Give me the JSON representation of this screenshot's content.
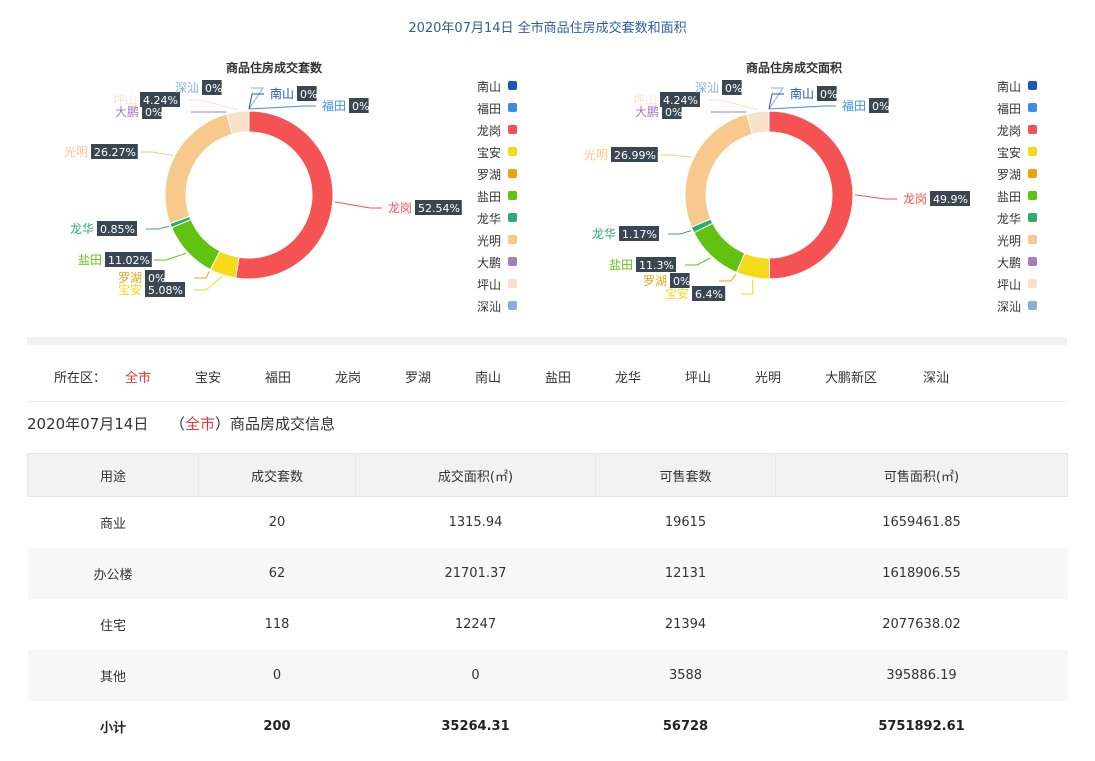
{
  "header": {
    "title": "2020年07月14日 全市商品住房成交套数和面积"
  },
  "legend": [
    {
      "name": "南山",
      "color": "#1e55b8"
    },
    {
      "name": "福田",
      "color": "#3d8de8"
    },
    {
      "name": "龙岗",
      "color": "#f55353"
    },
    {
      "name": "宝安",
      "color": "#f5da1a"
    },
    {
      "name": "罗湖",
      "color": "#eba20c"
    },
    {
      "name": "盐田",
      "color": "#62c211"
    },
    {
      "name": "龙华",
      "color": "#2fad6e"
    },
    {
      "name": "光明",
      "color": "#f8c98c"
    },
    {
      "name": "大鹏",
      "color": "#a57cc0"
    },
    {
      "name": "坪山",
      "color": "#f9e2c9"
    },
    {
      "name": "深汕",
      "color": "#89ace3"
    }
  ],
  "chart_data": [
    {
      "type": "pie",
      "title": "商品住房成交套数",
      "slices": [
        {
          "name": "龙岗",
          "value": 52.54,
          "label": "52.54%"
        },
        {
          "name": "宝安",
          "value": 5.08,
          "label": "5.08%"
        },
        {
          "name": "罗湖",
          "value": 0,
          "label": "0%"
        },
        {
          "name": "盐田",
          "value": 11.02,
          "label": "11.02%"
        },
        {
          "name": "龙华",
          "value": 0.85,
          "label": "0.85%"
        },
        {
          "name": "光明",
          "value": 26.27,
          "label": "26.27%"
        },
        {
          "name": "大鹏",
          "value": 0,
          "label": "0%"
        },
        {
          "name": "坪山",
          "value": 4.24,
          "label": "4.24%"
        },
        {
          "name": "深汕",
          "value": 0,
          "label": "0%"
        },
        {
          "name": "南山",
          "value": 0,
          "label": "0%"
        },
        {
          "name": "福田",
          "value": 0,
          "label": "0%"
        }
      ]
    },
    {
      "type": "pie",
      "title": "商品住房成交面积",
      "slices": [
        {
          "name": "龙岗",
          "value": 49.9,
          "label": "49.9%"
        },
        {
          "name": "宝安",
          "value": 6.4,
          "label": "6.4%"
        },
        {
          "name": "罗湖",
          "value": 0,
          "label": "0%"
        },
        {
          "name": "盐田",
          "value": 11.3,
          "label": "11.3%"
        },
        {
          "name": "龙华",
          "value": 1.17,
          "label": "1.17%"
        },
        {
          "name": "光明",
          "value": 26.99,
          "label": "26.99%"
        },
        {
          "name": "大鹏",
          "value": 0,
          "label": "0%"
        },
        {
          "name": "坪山",
          "value": 4.24,
          "label": "4.24%"
        },
        {
          "name": "深汕",
          "value": 0,
          "label": "0%"
        },
        {
          "name": "南山",
          "value": 0,
          "label": "0%"
        },
        {
          "name": "福田",
          "value": 0,
          "label": "0%"
        }
      ]
    }
  ],
  "filter": {
    "label": "所在区：",
    "items": [
      "全市",
      "宝安",
      "福田",
      "龙岗",
      "罗湖",
      "南山",
      "盐田",
      "龙华",
      "坪山",
      "光明",
      "大鹏新区",
      "深汕"
    ],
    "active": "全市"
  },
  "info": {
    "date": "2020年07月14日",
    "open_paren": "（",
    "region": "全市",
    "close_paren": "）",
    "suffix": "商品房成交信息"
  },
  "table": {
    "headers": [
      "用途",
      "成交套数",
      "成交面积(㎡)",
      "可售套数",
      "可售面积(㎡)"
    ],
    "rows": [
      [
        "商业",
        "20",
        "1315.94",
        "19615",
        "1659461.85"
      ],
      [
        "办公楼",
        "62",
        "21701.37",
        "12131",
        "1618906.55"
      ],
      [
        "住宅",
        "118",
        "12247",
        "21394",
        "2077638.02"
      ],
      [
        "其他",
        "0",
        "0",
        "3588",
        "395886.19"
      ]
    ],
    "total": [
      "小计",
      "200",
      "35264.31",
      "56728",
      "5751892.61"
    ]
  }
}
